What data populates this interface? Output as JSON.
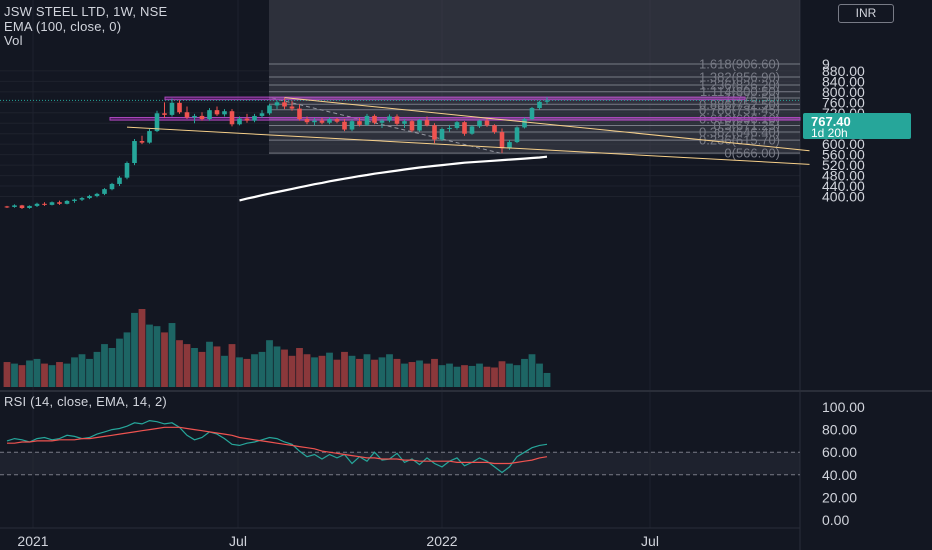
{
  "header": {
    "symbol_line": "JSW STEEL LTD, 1W, NSE",
    "ema_line": "EMA (100, close, 0)",
    "vol_line": "Vol",
    "rsi_line": "RSI (14, close, EMA, 14, 2)",
    "currency": "INR"
  },
  "price_tag": {
    "price": "767.40",
    "countdown": "1d 20h"
  },
  "colors": {
    "background": "#131722",
    "up": "#26a69a",
    "down": "#ef5350",
    "fib_line": "#787b86",
    "fib_zone": "#434651",
    "sr_zone": "#9c27b0",
    "trend_line": "#f7d08a",
    "ema": "#ffffff",
    "rsi": "#26a69a",
    "rsi_ma": "#ef5350"
  },
  "chart_data": [
    {
      "type": "candlestick",
      "title": "JSW STEEL LTD, 1W, NSE",
      "x_tick_labels": [
        "2021",
        "Jul",
        "2022",
        "Jul"
      ],
      "y_tick_labels": [
        "400.00",
        "440.00",
        "480.00",
        "520.00",
        "560.00",
        "600.00",
        "640.00",
        "680.00",
        "720.00",
        "760.00",
        "800.00",
        "840.00",
        "880.00"
      ],
      "ylim": [
        380,
        920
      ],
      "last_price": 767.4,
      "candles": [
        [
          362,
          364,
          356,
          360
        ],
        [
          360,
          370,
          357,
          366
        ],
        [
          366,
          368,
          352,
          356
        ],
        [
          356,
          366,
          353,
          364
        ],
        [
          364,
          376,
          360,
          372
        ],
        [
          372,
          378,
          364,
          368
        ],
        [
          368,
          381,
          366,
          378
        ],
        [
          378,
          384,
          368,
          372
        ],
        [
          372,
          386,
          370,
          383
        ],
        [
          383,
          392,
          376,
          388
        ],
        [
          388,
          398,
          383,
          394
        ],
        [
          394,
          406,
          390,
          402
        ],
        [
          402,
          414,
          397,
          410
        ],
        [
          410,
          432,
          405,
          428
        ],
        [
          428,
          452,
          424,
          448
        ],
        [
          448,
          478,
          440,
          472
        ],
        [
          472,
          534,
          466,
          528
        ],
        [
          528,
          620,
          520,
          612
        ],
        [
          612,
          632,
          600,
          606
        ],
        [
          606,
          658,
          602,
          650
        ],
        [
          650,
          728,
          646,
          718
        ],
        [
          718,
          760,
          700,
          712
        ],
        [
          712,
          774,
          706,
          758
        ],
        [
          758,
          768,
          716,
          722
        ],
        [
          722,
          744,
          696,
          702
        ],
        [
          702,
          716,
          680,
          708
        ],
        [
          708,
          722,
          690,
          696
        ],
        [
          696,
          738,
          690,
          730
        ],
        [
          730,
          744,
          708,
          714
        ],
        [
          714,
          734,
          706,
          726
        ],
        [
          726,
          734,
          668,
          676
        ],
        [
          676,
          706,
          672,
          698
        ],
        [
          698,
          716,
          682,
          690
        ],
        [
          690,
          716,
          684,
          708
        ],
        [
          708,
          730,
          700,
          718
        ],
        [
          718,
          754,
          712,
          748
        ],
        [
          748,
          766,
          734,
          760
        ],
        [
          760,
          776,
          734,
          744
        ],
        [
          744,
          766,
          728,
          736
        ],
        [
          736,
          752,
          690,
          696
        ],
        [
          696,
          706,
          676,
          684
        ],
        [
          684,
          700,
          672,
          690
        ],
        [
          690,
          700,
          676,
          682
        ],
        [
          682,
          702,
          676,
          696
        ],
        [
          696,
          700,
          680,
          686
        ],
        [
          686,
          696,
          650,
          656
        ],
        [
          656,
          694,
          650,
          688
        ],
        [
          688,
          700,
          668,
          674
        ],
        [
          674,
          716,
          670,
          708
        ],
        [
          708,
          714,
          676,
          682
        ],
        [
          682,
          696,
          662,
          690
        ],
        [
          690,
          714,
          684,
          706
        ],
        [
          706,
          714,
          672,
          678
        ],
        [
          678,
          696,
          662,
          688
        ],
        [
          688,
          692,
          646,
          652
        ],
        [
          652,
          696,
          648,
          692
        ],
        [
          692,
          706,
          668,
          672
        ],
        [
          672,
          680,
          604,
          618
        ],
        [
          618,
          664,
          612,
          658
        ],
        [
          658,
          674,
          648,
          662
        ],
        [
          662,
          688,
          656,
          684
        ],
        [
          684,
          688,
          632,
          640
        ],
        [
          640,
          672,
          636,
          668
        ],
        [
          668,
          694,
          662,
          690
        ],
        [
          690,
          700,
          666,
          672
        ],
        [
          672,
          676,
          640,
          646
        ],
        [
          646,
          660,
          566,
          584
        ],
        [
          584,
          616,
          578,
          608
        ],
        [
          608,
          668,
          604,
          664
        ],
        [
          664,
          702,
          660,
          696
        ],
        [
          696,
          742,
          690,
          738
        ],
        [
          738,
          766,
          732,
          762
        ],
        [
          762,
          780,
          754,
          767
        ]
      ],
      "volume_relative": [
        0.32,
        0.3,
        0.28,
        0.34,
        0.36,
        0.3,
        0.28,
        0.32,
        0.3,
        0.38,
        0.42,
        0.36,
        0.45,
        0.55,
        0.5,
        0.62,
        0.7,
        0.95,
        1.0,
        0.8,
        0.78,
        0.7,
        0.82,
        0.6,
        0.55,
        0.5,
        0.45,
        0.58,
        0.52,
        0.4,
        0.55,
        0.38,
        0.36,
        0.42,
        0.45,
        0.6,
        0.52,
        0.48,
        0.4,
        0.5,
        0.42,
        0.38,
        0.4,
        0.44,
        0.35,
        0.45,
        0.4,
        0.36,
        0.42,
        0.35,
        0.38,
        0.42,
        0.36,
        0.3,
        0.32,
        0.34,
        0.3,
        0.36,
        0.28,
        0.3,
        0.26,
        0.28,
        0.27,
        0.3,
        0.26,
        0.25,
        0.33,
        0.3,
        0.28,
        0.36,
        0.42,
        0.3,
        0.18
      ],
      "ema_100": {
        "start_x_index": 31,
        "values": [
          385,
          392,
          398,
          405,
          411,
          417,
          423,
          429,
          435,
          441,
          447,
          452,
          458,
          463,
          468,
          473,
          478,
          482,
          487,
          491,
          495,
          499,
          503,
          507,
          511,
          514,
          517,
          520,
          523,
          526,
          529,
          531,
          533,
          535,
          537,
          539,
          541,
          543,
          545,
          547,
          549,
          552
        ]
      },
      "fibonacci": {
        "levels": [
          {
            "ratio_label": "1.618",
            "price": 906.6
          },
          {
            "ratio_label": "1.382",
            "price": 856.9
          },
          {
            "ratio_label": "1.236",
            "price": 826.2
          },
          {
            "ratio_label": "1.114",
            "price": 800.5
          },
          {
            "ratio_label": "1",
            "price": 776.5
          },
          {
            "ratio_label": "0.886",
            "price": 752.5
          },
          {
            "ratio_label": "0.786",
            "price": 731.45
          },
          {
            "ratio_label": "0.618",
            "price": 696.1
          },
          {
            "ratio_label": "0.5",
            "price": 671.25
          },
          {
            "ratio_label": "0.382",
            "price": 646.4
          },
          {
            "ratio_label": "0.236",
            "price": 615.7
          },
          {
            "ratio_label": "0",
            "price": 566.0
          }
        ]
      },
      "zones": [
        {
          "name": "resistance",
          "price_low": 770,
          "price_high": 780
        },
        {
          "name": "support",
          "price_low": 692,
          "price_high": 702
        }
      ],
      "trend_lines": [
        {
          "from_index": 37,
          "from_price": 778,
          "to_index": 107,
          "to_price": 575
        },
        {
          "from_index": 16,
          "from_price": 665,
          "to_index": 107,
          "to_price": 523
        }
      ]
    },
    {
      "type": "line",
      "title": "RSI (14, close, EMA, 14, 2)",
      "y_tick_labels": [
        "0.00",
        "20.00",
        "40.00",
        "60.00",
        "80.00",
        "100.00"
      ],
      "ylim": [
        0,
        100
      ],
      "bands": {
        "upper": 60,
        "lower": 40
      },
      "series": [
        {
          "values": [
            70,
            72,
            71,
            69,
            72,
            73,
            71,
            72,
            75,
            74,
            72,
            73,
            76,
            78,
            80,
            81,
            83,
            86,
            85,
            88,
            87,
            85,
            86,
            82,
            75,
            71,
            73,
            78,
            76,
            72,
            67,
            66,
            68,
            69,
            71,
            73,
            72,
            69,
            67,
            61,
            56,
            58,
            54,
            58,
            55,
            58,
            50,
            56,
            52,
            60,
            53,
            54,
            59,
            51,
            54,
            49,
            55,
            50,
            47,
            52,
            55,
            48,
            51,
            55,
            52,
            47,
            42,
            47,
            56,
            60,
            64,
            66,
            67
          ]
        },
        {
          "values": [
            68,
            68,
            69,
            69,
            70,
            70,
            70,
            71,
            71,
            71,
            72,
            72,
            73,
            74,
            75,
            76,
            77,
            78,
            79,
            80,
            81,
            82,
            82,
            82,
            81,
            80,
            79,
            78,
            77,
            76,
            75,
            73,
            72,
            71,
            70,
            69,
            68,
            67,
            66,
            65,
            64,
            63,
            61,
            60,
            59,
            58,
            57,
            56,
            55,
            55,
            54,
            54,
            54,
            53,
            53,
            52,
            52,
            52,
            52,
            52,
            51,
            51,
            51,
            51,
            51,
            50,
            50,
            50,
            51,
            52,
            53,
            55,
            56
          ]
        }
      ]
    }
  ]
}
